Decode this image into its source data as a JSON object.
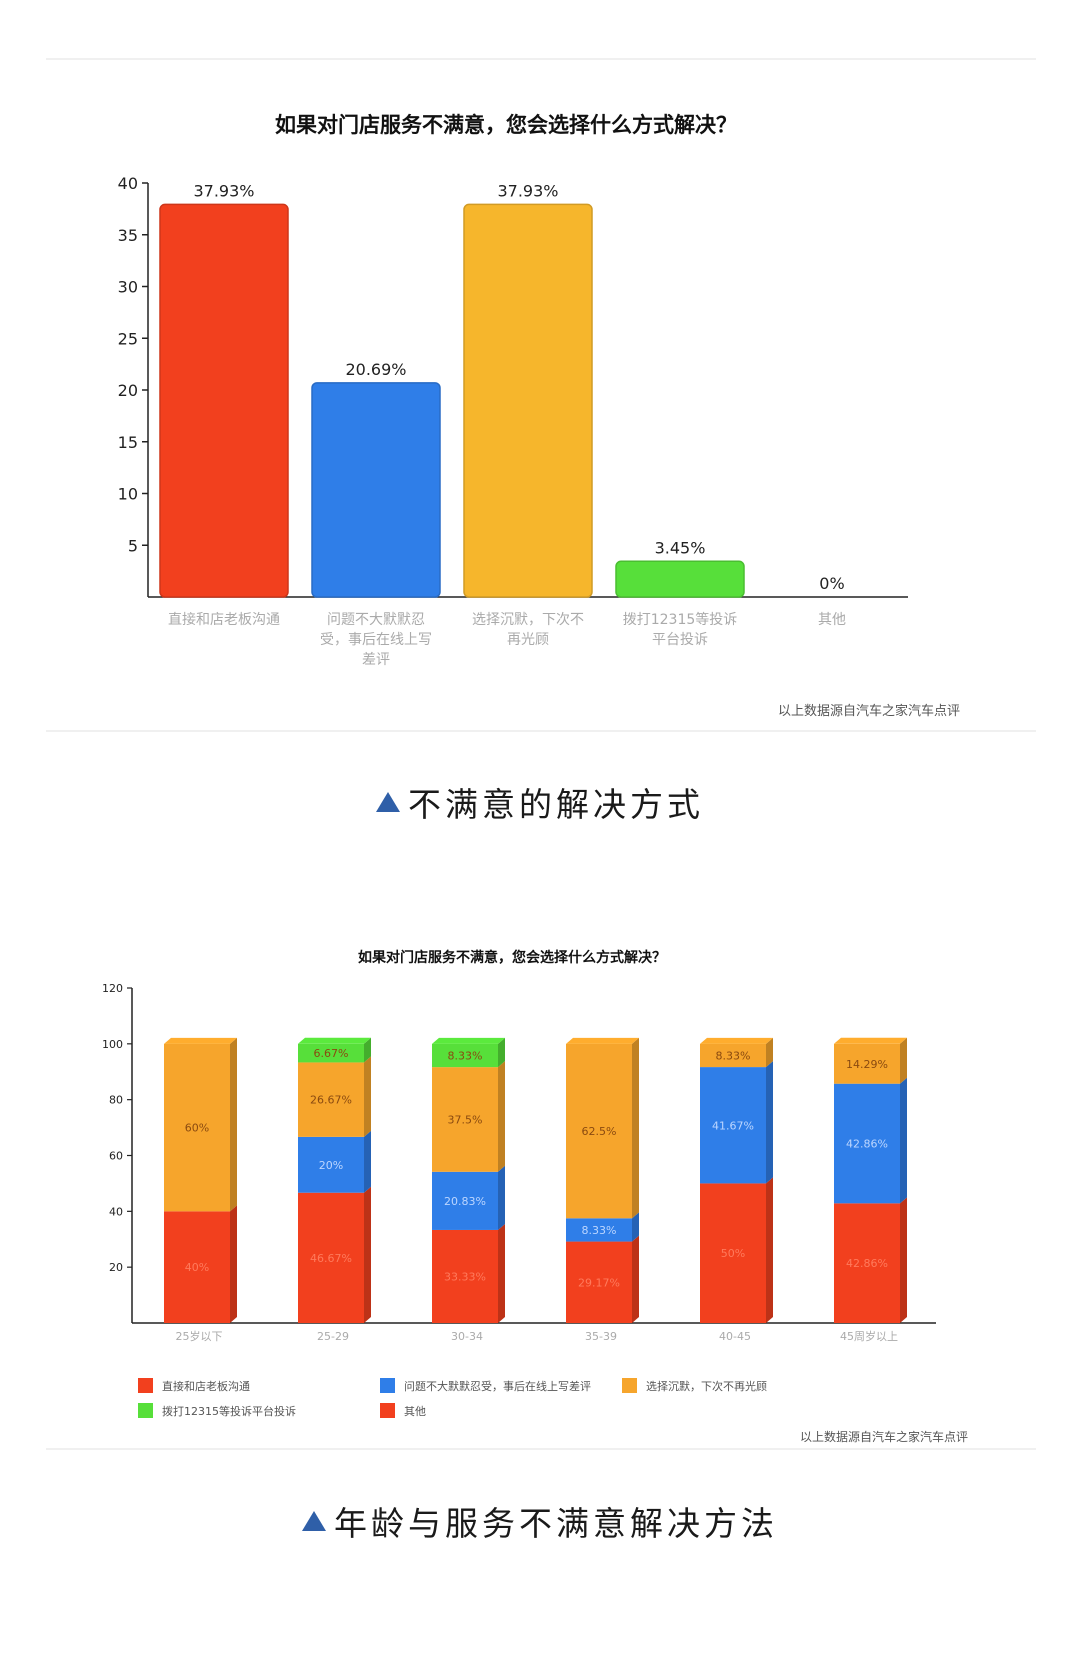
{
  "captions": {
    "top": "不满意的解决方式",
    "bottom": "年龄与服务不满意解决方法"
  },
  "source_note": "以上数据源自汽车之家汽车点评",
  "colors": {
    "red": "#f2401e",
    "blue": "#2f7ee8",
    "orange": "#f6a52c",
    "yellow": "#f6b62c",
    "green": "#57df3a",
    "caption_triangle": "#2f5fa8"
  },
  "chart_data": [
    {
      "type": "bar",
      "title": "如果对门店服务不满意，您会选择什么方式解决？",
      "categories": [
        [
          "直接和店老板沟通"
        ],
        [
          "问题不大默默忍",
          "受，事后在线上写",
          "差评"
        ],
        [
          "选择沉默，下次不",
          "再光顾"
        ],
        [
          "拨打12315等投诉",
          "平台投诉"
        ],
        [
          "其他"
        ]
      ],
      "values": [
        37.93,
        20.69,
        37.93,
        3.45,
        0
      ],
      "data_labels": [
        "37.93%",
        "20.69%",
        "37.93%",
        "3.45%",
        "0%"
      ],
      "bar_colors": [
        "#f2401e",
        "#2f7ee8",
        "#f6b62c",
        "#57df3a",
        "#f2401e"
      ],
      "yticks": [
        5,
        10,
        15,
        20,
        25,
        30,
        35,
        40
      ],
      "ylim": [
        0,
        40
      ],
      "grid": false
    },
    {
      "type": "bar",
      "stacked": true,
      "title": "如果对门店服务不满意，您会选择什么方式解决？",
      "categories": [
        "25岁以下",
        "25-29",
        "30-34",
        "35-39",
        "40-45",
        "45周岁以上"
      ],
      "series": [
        {
          "name": "直接和店老板沟通",
          "color": "#f2401e",
          "values": [
            40,
            46.67,
            33.33,
            29.17,
            50,
            42.86
          ],
          "labels": [
            "40%",
            "46.67%",
            "33.33%",
            "29.17%",
            "50%",
            "42.86%"
          ]
        },
        {
          "name": "问题不大默默忍受，事后在线上写差评",
          "color": "#2f7ee8",
          "values": [
            0,
            20,
            20.83,
            8.33,
            41.67,
            42.86
          ],
          "labels": [
            "",
            "20%",
            "20.83%",
            "8.33%",
            "41.67%",
            "42.86%"
          ]
        },
        {
          "name": "选择沉默，下次不再光顾",
          "color": "#f6a52c",
          "values": [
            60,
            26.67,
            37.5,
            62.5,
            8.33,
            14.29
          ],
          "labels": [
            "60%",
            "26.67%",
            "37.5%",
            "62.5%",
            "8.33%",
            "14.29%"
          ]
        },
        {
          "name": "拨打12315等投诉平台投诉",
          "color": "#57df3a",
          "values": [
            0,
            6.67,
            8.33,
            0,
            0,
            0
          ],
          "labels": [
            "",
            "6.67%",
            "8.33%",
            "",
            "",
            ""
          ]
        },
        {
          "name": "其他",
          "color": "#f2401e",
          "values": [
            0,
            0,
            0,
            0,
            0,
            0
          ],
          "labels": [
            "",
            "",
            "",
            "",
            "",
            ""
          ]
        }
      ],
      "yticks": [
        20,
        40,
        60,
        80,
        100,
        120
      ],
      "ylim": [
        0,
        120
      ],
      "legend_position": "bottom",
      "grid": false
    }
  ]
}
